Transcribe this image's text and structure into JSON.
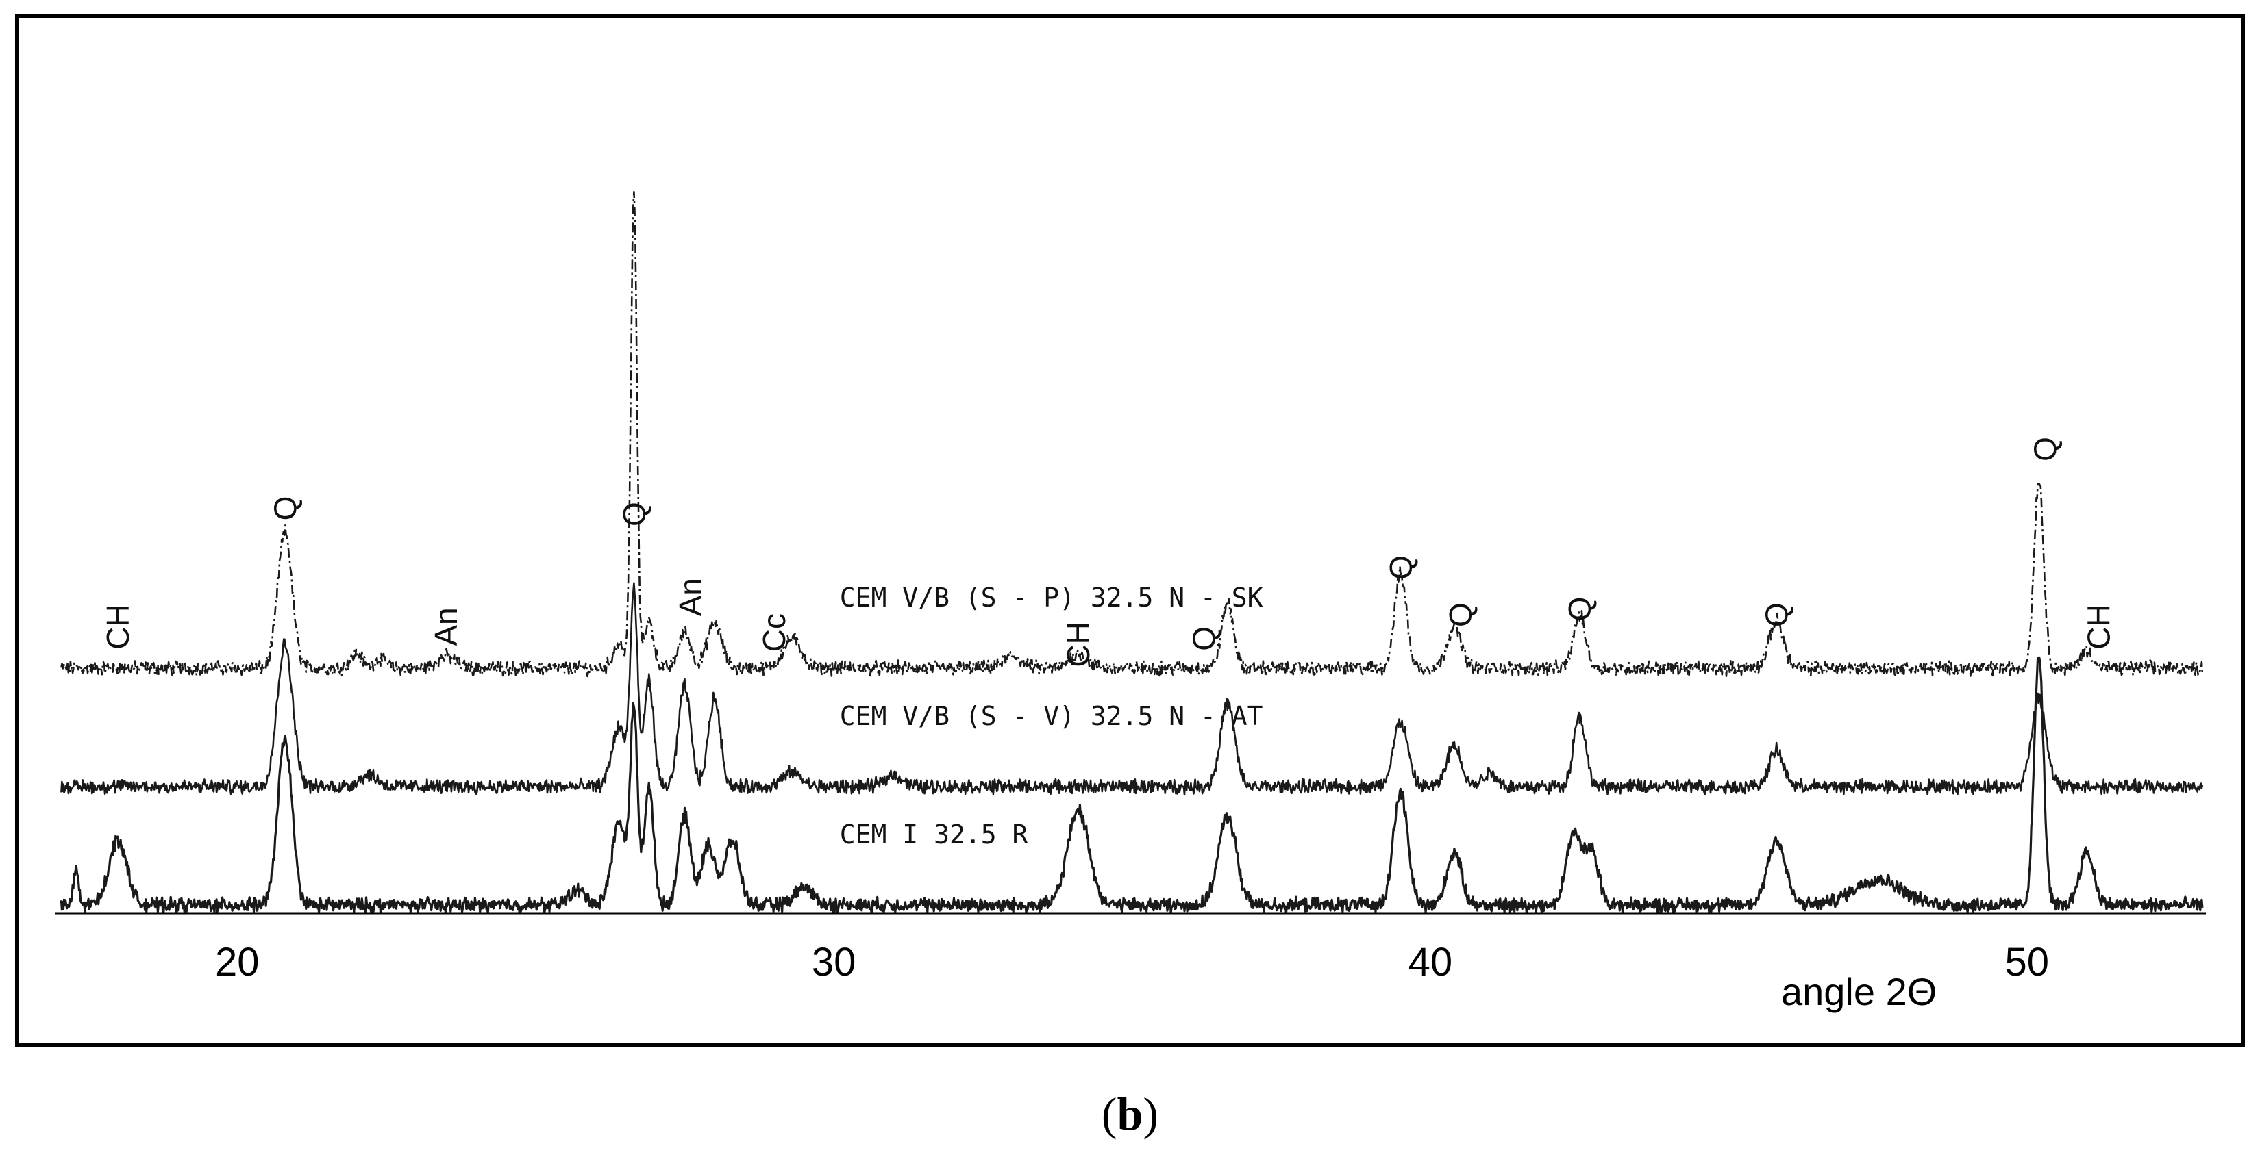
{
  "chart_data": {
    "type": "line",
    "title": "",
    "xlabel": "angle 2Θ",
    "ylabel": "",
    "xlim": [
      17,
      53
    ],
    "x_ticks": [
      {
        "value": 20,
        "label": "20"
      },
      {
        "value": 30,
        "label": "30"
      },
      {
        "value": 40,
        "label": "40"
      },
      {
        "value": 50,
        "label": "50"
      }
    ],
    "grid": false,
    "legend": "none",
    "series": [
      {
        "name": "CEM V/B (S - P) 32.5 N - SK",
        "line_style": "dashed",
        "baseline_level": 3,
        "peaks": [
          {
            "x": 20.8,
            "h": 1.15,
            "w": 0.12
          },
          {
            "x": 22.0,
            "h": 0.12,
            "w": 0.1
          },
          {
            "x": 22.4,
            "h": 0.08,
            "w": 0.1
          },
          {
            "x": 23.5,
            "h": 0.1,
            "w": 0.15
          },
          {
            "x": 26.4,
            "h": 0.2,
            "w": 0.1
          },
          {
            "x": 26.65,
            "h": 4.0,
            "w": 0.05
          },
          {
            "x": 26.9,
            "h": 0.4,
            "w": 0.08
          },
          {
            "x": 27.5,
            "h": 0.3,
            "w": 0.1
          },
          {
            "x": 28.0,
            "h": 0.38,
            "w": 0.12
          },
          {
            "x": 29.3,
            "h": 0.25,
            "w": 0.15
          },
          {
            "x": 33.0,
            "h": 0.1,
            "w": 0.15
          },
          {
            "x": 34.1,
            "h": 0.12,
            "w": 0.15
          },
          {
            "x": 36.6,
            "h": 0.55,
            "w": 0.1
          },
          {
            "x": 39.5,
            "h": 0.8,
            "w": 0.1
          },
          {
            "x": 40.4,
            "h": 0.35,
            "w": 0.12
          },
          {
            "x": 42.5,
            "h": 0.45,
            "w": 0.1
          },
          {
            "x": 45.8,
            "h": 0.4,
            "w": 0.12
          },
          {
            "x": 50.2,
            "h": 1.6,
            "w": 0.08
          },
          {
            "x": 51.0,
            "h": 0.15,
            "w": 0.1
          }
        ]
      },
      {
        "name": "CEM V/B (S - V) 32.5 N - AT",
        "line_style": "solid",
        "baseline_level": 2,
        "peaks": [
          {
            "x": 20.8,
            "h": 1.2,
            "w": 0.13
          },
          {
            "x": 22.2,
            "h": 0.1,
            "w": 0.15
          },
          {
            "x": 26.4,
            "h": 0.5,
            "w": 0.12
          },
          {
            "x": 26.65,
            "h": 1.6,
            "w": 0.06
          },
          {
            "x": 26.9,
            "h": 0.9,
            "w": 0.08
          },
          {
            "x": 27.5,
            "h": 0.85,
            "w": 0.1
          },
          {
            "x": 28.0,
            "h": 0.75,
            "w": 0.1
          },
          {
            "x": 29.3,
            "h": 0.12,
            "w": 0.15
          },
          {
            "x": 31.0,
            "h": 0.1,
            "w": 0.15
          },
          {
            "x": 36.6,
            "h": 0.7,
            "w": 0.12
          },
          {
            "x": 39.5,
            "h": 0.55,
            "w": 0.12
          },
          {
            "x": 40.4,
            "h": 0.35,
            "w": 0.12
          },
          {
            "x": 41.0,
            "h": 0.12,
            "w": 0.12
          },
          {
            "x": 42.5,
            "h": 0.6,
            "w": 0.1
          },
          {
            "x": 45.8,
            "h": 0.3,
            "w": 0.12
          },
          {
            "x": 50.2,
            "h": 0.75,
            "w": 0.12
          }
        ]
      },
      {
        "name": "CEM I 32.5 R",
        "line_style": "solid",
        "baseline_level": 1,
        "peaks": [
          {
            "x": 17.3,
            "h": 0.3,
            "w": 0.04
          },
          {
            "x": 18.0,
            "h": 0.55,
            "w": 0.15
          },
          {
            "x": 20.8,
            "h": 1.4,
            "w": 0.12
          },
          {
            "x": 25.7,
            "h": 0.12,
            "w": 0.15
          },
          {
            "x": 26.4,
            "h": 0.7,
            "w": 0.12
          },
          {
            "x": 26.65,
            "h": 1.6,
            "w": 0.06
          },
          {
            "x": 26.9,
            "h": 1.0,
            "w": 0.08
          },
          {
            "x": 27.5,
            "h": 0.75,
            "w": 0.1
          },
          {
            "x": 27.9,
            "h": 0.5,
            "w": 0.12
          },
          {
            "x": 28.3,
            "h": 0.55,
            "w": 0.12
          },
          {
            "x": 29.5,
            "h": 0.15,
            "w": 0.15
          },
          {
            "x": 34.1,
            "h": 0.8,
            "w": 0.18
          },
          {
            "x": 36.6,
            "h": 0.75,
            "w": 0.15
          },
          {
            "x": 39.5,
            "h": 0.95,
            "w": 0.12
          },
          {
            "x": 40.4,
            "h": 0.45,
            "w": 0.12
          },
          {
            "x": 42.4,
            "h": 0.6,
            "w": 0.12
          },
          {
            "x": 42.7,
            "h": 0.45,
            "w": 0.12
          },
          {
            "x": 45.8,
            "h": 0.55,
            "w": 0.15
          },
          {
            "x": 47.5,
            "h": 0.22,
            "w": 0.4
          },
          {
            "x": 50.2,
            "h": 2.1,
            "w": 0.08
          },
          {
            "x": 51.0,
            "h": 0.45,
            "w": 0.12
          }
        ]
      }
    ],
    "annotations": [
      {
        "label": "Q",
        "x": 26.65,
        "y": 4.3,
        "rotated": true
      },
      {
        "label": "CH",
        "x": 18.0,
        "y": 3.35,
        "rotated": true
      },
      {
        "label": "Q",
        "x": 20.8,
        "y": 4.35,
        "rotated": true
      },
      {
        "label": "An",
        "x": 23.5,
        "y": 3.35,
        "rotated": true
      },
      {
        "label": "An",
        "x": 27.6,
        "y": 3.6,
        "rotated": true
      },
      {
        "label": "Cc",
        "x": 29.0,
        "y": 3.3,
        "rotated": true
      },
      {
        "label": "CH",
        "x": 34.1,
        "y": 3.2,
        "rotated": true
      },
      {
        "label": "Q",
        "x": 36.2,
        "y": 3.25,
        "rotated": true
      },
      {
        "label": "Q",
        "x": 39.5,
        "y": 3.85,
        "rotated": true
      },
      {
        "label": "Q",
        "x": 40.5,
        "y": 3.45,
        "rotated": true
      },
      {
        "label": "Q",
        "x": 42.5,
        "y": 3.5,
        "rotated": true
      },
      {
        "label": "Q",
        "x": 45.8,
        "y": 3.45,
        "rotated": true
      },
      {
        "label": "Q",
        "x": 50.3,
        "y": 4.85,
        "rotated": true
      },
      {
        "label": "CH",
        "x": 51.2,
        "y": 3.35,
        "rotated": true
      },
      {
        "label": "CEM V/B (S - P) 32.5 N - SK",
        "x": 30.1,
        "y": 3.52,
        "rotated": false
      },
      {
        "label": "CEM V/B (S - V) 32.5 N - AT",
        "x": 30.1,
        "y": 2.52,
        "rotated": false
      },
      {
        "label": "CEM I 32.5 R",
        "x": 30.1,
        "y": 1.52,
        "rotated": false
      }
    ]
  },
  "caption": {
    "open": "(",
    "letter": "b",
    "close": ")"
  }
}
